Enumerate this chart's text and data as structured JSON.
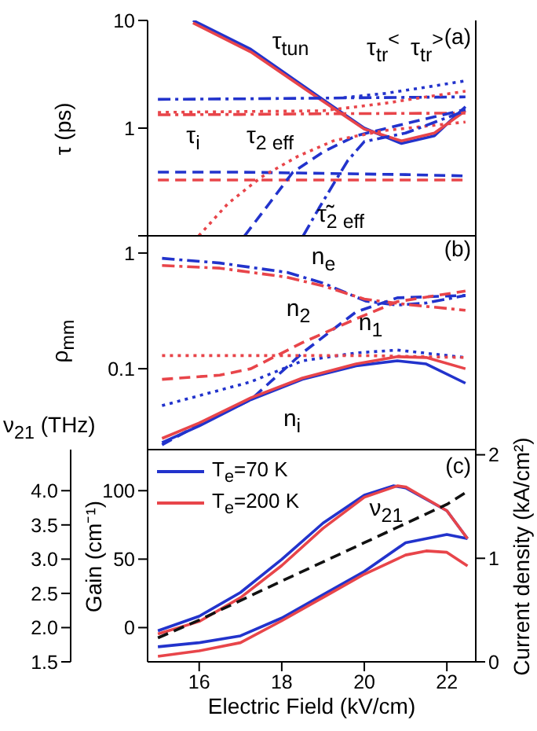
{
  "chart_data": [
    {
      "type": "line",
      "ylabel": "τ (ps)",
      "log": "y",
      "xlim": [
        14.75,
        22.7
      ],
      "ylim": [
        0.1,
        10
      ],
      "yticks": [
        {
          "value": 0.1,
          "label": null
        },
        1,
        10
      ],
      "tick_labels": "y",
      "annotations": [
        "(a)",
        "τ$_{tun}$",
        "τ$_{tr}$$^{<}$",
        "τ$_{tr}$$^{>}$",
        "τ$_{i}$",
        "τ$_{2 eff}$",
        "τ̃$_{2 eff}$"
      ],
      "series": [
        {
          "color": "#2233cc",
          "line_style": "solid",
          "x": [
            15.85,
            17.25,
            18.8,
            20.0,
            20.9,
            21.7,
            22.45
          ],
          "values": [
            10,
            5.4,
            2.08,
            1.0,
            0.72,
            0.85,
            1.58
          ]
        },
        {
          "color": "#e8454a",
          "line_style": "solid",
          "x": [
            15.85,
            17.25,
            18.8,
            20.0,
            20.9,
            21.7,
            22.45
          ],
          "values": [
            9.5,
            5.1,
            2.0,
            0.98,
            0.76,
            0.9,
            1.45
          ]
        },
        {
          "color": "#2233cc",
          "line_style": "dashdot",
          "x": [
            15,
            17,
            19,
            21,
            22.45
          ],
          "values": [
            1.85,
            1.87,
            1.9,
            1.93,
            1.95
          ]
        },
        {
          "color": "#2233cc",
          "line_style": "dotted",
          "x": [
            19.5,
            20.5,
            21.5,
            22.45
          ],
          "values": [
            1.92,
            2.1,
            2.4,
            2.75
          ]
        },
        {
          "color": "#e8454a",
          "line_style": "dashdot",
          "x": [
            15,
            17,
            19,
            21,
            22.45
          ],
          "values": [
            1.33,
            1.34,
            1.36,
            1.37,
            1.38
          ]
        },
        {
          "color": "#e8454a",
          "line_style": "dotted",
          "x": [
            15,
            19,
            20.5,
            21.5,
            22.45
          ],
          "values": [
            1.4,
            1.45,
            1.7,
            1.95,
            2.2
          ]
        },
        {
          "color": "#2233cc",
          "line_style": "dashed",
          "x": [
            15,
            17,
            19,
            21,
            22.45
          ],
          "values": [
            0.39,
            0.39,
            0.38,
            0.37,
            0.36
          ]
        },
        {
          "color": "#e8454a",
          "line_style": "dashed",
          "x": [
            15,
            17,
            19,
            21,
            22.45
          ],
          "values": [
            0.33,
            0.33,
            0.33,
            0.33,
            0.33
          ]
        },
        {
          "color": "#2233cc",
          "line_style": "dashed",
          "x": [
            17.1,
            17.7,
            18.27,
            19.0,
            19.8,
            21,
            22.45
          ],
          "values": [
            0.1,
            0.2,
            0.39,
            0.6,
            0.85,
            1.1,
            1.49
          ]
        },
        {
          "color": "#e8454a",
          "line_style": "dotted",
          "x": [
            15.99,
            16.7,
            17.5,
            18.4,
            19.28,
            20.5,
            22.45
          ],
          "values": [
            0.1,
            0.2,
            0.35,
            0.55,
            0.77,
            0.95,
            1.14
          ]
        },
        {
          "color": "#2233cc",
          "line_style": "dashdot",
          "x": [
            18.52,
            18.9,
            19.27,
            19.6,
            20.0,
            21,
            22.45
          ],
          "values": [
            0.1,
            0.18,
            0.31,
            0.5,
            0.75,
            0.9,
            1.45
          ]
        }
      ]
    },
    {
      "type": "line",
      "ylabel": "ρ$_{mm}$",
      "log": "y",
      "xlim": [
        14.75,
        22.7
      ],
      "ylim": [
        0.02,
        1.5
      ],
      "yticks": [
        0.1,
        1
      ],
      "tick_labels": "y",
      "annotations": [
        "(b)",
        "n$_{e}$",
        "n$_{2}$",
        "n$_{1}$",
        "n$_{i}$"
      ],
      "series": [
        {
          "color": "#2233cc",
          "line_style": "dashdot",
          "x": [
            15.1,
            16.5,
            18.13,
            19,
            20.03,
            20.8,
            21.5,
            22.45
          ],
          "values": [
            0.9,
            0.82,
            0.68,
            0.55,
            0.385,
            0.355,
            0.37,
            0.43
          ]
        },
        {
          "color": "#e8454a",
          "line_style": "dashdot",
          "x": [
            15.1,
            16.5,
            18.1,
            19,
            20,
            21,
            22.45
          ],
          "values": [
            0.78,
            0.74,
            0.62,
            0.52,
            0.4,
            0.36,
            0.32
          ]
        },
        {
          "color": "#2233cc",
          "line_style": "dashed",
          "x": [
            15.1,
            16,
            17.25,
            18.5,
            19.8,
            20.8,
            22.45
          ],
          "values": [
            0.022,
            0.033,
            0.054,
            0.137,
            0.31,
            0.41,
            0.43
          ]
        },
        {
          "color": "#e8454a",
          "line_style": "dashed",
          "x": [
            15.1,
            16.5,
            17.25,
            18.5,
            19.8,
            20.8,
            22.45
          ],
          "values": [
            0.081,
            0.088,
            0.1,
            0.168,
            0.27,
            0.38,
            0.47
          ]
        },
        {
          "color": "#2233cc",
          "line_style": "dotted",
          "x": [
            15.1,
            17.25,
            18.5,
            19.8,
            20.8,
            22.45
          ],
          "values": [
            0.048,
            0.077,
            0.117,
            0.137,
            0.145,
            0.125
          ]
        },
        {
          "color": "#e8454a",
          "line_style": "dotted",
          "x": [
            15.1,
            18,
            20,
            22.45
          ],
          "values": [
            0.13,
            0.13,
            0.13,
            0.125
          ]
        },
        {
          "color": "#2233cc",
          "line_style": "solid",
          "x": [
            15.1,
            16,
            17.25,
            18.5,
            19.8,
            20.8,
            21.5,
            22.45
          ],
          "values": [
            0.023,
            0.032,
            0.054,
            0.081,
            0.106,
            0.117,
            0.11,
            0.075
          ]
        },
        {
          "color": "#e8454a",
          "line_style": "solid",
          "x": [
            15.1,
            16,
            17.25,
            18.5,
            19.8,
            20.8,
            21.5,
            22.45
          ],
          "values": [
            0.025,
            0.034,
            0.056,
            0.083,
            0.11,
            0.127,
            0.125,
            0.1
          ]
        }
      ]
    },
    {
      "type": "line",
      "xlabel": "Electric Field (kV/cm)",
      "ylabel": "Gain (cm⁻¹)",
      "y2label": "Current density (kA/cm²)",
      "y3label": "ν$_{21}$ (THz)",
      "xlim": [
        14.75,
        22.7
      ],
      "xticks": [
        16,
        18,
        20,
        22
      ],
      "ylim": [
        -25,
        130
      ],
      "yticks": [
        0,
        50,
        100
      ],
      "y2lim": [
        0,
        2.05
      ],
      "y2ticks": [
        0,
        1,
        2
      ],
      "y3lim": [
        1.5,
        4.6
      ],
      "y3ticks": [
        1.5,
        {
          "value": 2,
          "label": "2.0"
        },
        2.5,
        {
          "value": 3,
          "label": "3.0"
        },
        3.5,
        {
          "value": 4,
          "label": "4.0"
        }
      ],
      "legend": "top left",
      "annotations": [
        "(c)",
        "ν$_{21}$"
      ],
      "series": [
        {
          "name": "T$_{e}$=70 K",
          "color": "#2233cc",
          "line_style": "solid",
          "x": [
            15,
            16,
            17,
            18,
            19,
            20,
            21,
            22,
            22.5
          ],
          "values": [
            -14,
            -11,
            -6,
            7,
            24,
            41,
            62,
            68,
            65
          ]
        },
        {
          "name": "T$_{e}$=200 K",
          "color": "#e8454a",
          "line_style": "solid",
          "x": [
            15,
            16,
            17,
            18,
            19,
            20,
            21,
            21.5,
            22,
            22.5
          ],
          "values": [
            -21,
            -17,
            -11,
            5,
            22,
            39,
            53,
            56,
            55,
            45
          ]
        },
        {
          "color": "#2233cc",
          "line_style": "solid",
          "axis": "y2",
          "x": [
            15,
            16,
            17,
            18,
            19,
            20,
            20.7,
            21,
            22,
            22.5
          ],
          "values": [
            0.3,
            0.44,
            0.67,
            0.99,
            1.34,
            1.61,
            1.7,
            1.68,
            1.46,
            1.19
          ]
        },
        {
          "color": "#e8454a",
          "line_style": "solid",
          "axis": "y2",
          "x": [
            15,
            16,
            17,
            18,
            19,
            20,
            20.8,
            21,
            22,
            22.5
          ],
          "values": [
            0.27,
            0.39,
            0.62,
            0.93,
            1.29,
            1.59,
            1.7,
            1.69,
            1.46,
            1.19
          ]
        },
        {
          "color": "#111111",
          "line_style": "dashed",
          "axis": "y3",
          "x": [
            15,
            16,
            18,
            20,
            22,
            22.5
          ],
          "values": [
            1.85,
            2.11,
            2.68,
            3.24,
            3.8,
            3.99
          ]
        }
      ]
    }
  ]
}
